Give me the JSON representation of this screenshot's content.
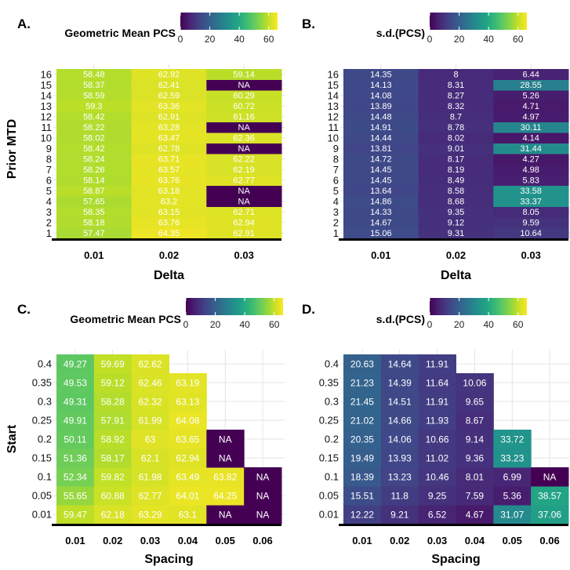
{
  "chart_data": [
    {
      "type": "heatmap",
      "panel": "A.",
      "title": "Geometric Mean PCS",
      "xlabel": "Delta",
      "ylabel": "Prior MTD",
      "x": [
        "0.01",
        "0.02",
        "0.03"
      ],
      "y": [
        "1",
        "2",
        "3",
        "4",
        "5",
        "6",
        "7",
        "8",
        "9",
        "10",
        "11",
        "12",
        "13",
        "14",
        "15",
        "16"
      ],
      "values": [
        [
          "57.47",
          "64.35",
          "62.91"
        ],
        [
          "58.18",
          "63.76",
          "62.94"
        ],
        [
          "58.35",
          "63.15",
          "62.71"
        ],
        [
          "57.65",
          "63.2",
          "NA"
        ],
        [
          "58.87",
          "63.18",
          "NA"
        ],
        [
          "58.14",
          "63.76",
          "62.77"
        ],
        [
          "58.26",
          "63.57",
          "62.19"
        ],
        [
          "58.24",
          "63.71",
          "62.22"
        ],
        [
          "58.42",
          "62.78",
          "NA"
        ],
        [
          "58.02",
          "63.47",
          "62.36"
        ],
        [
          "58.22",
          "63.28",
          "NA"
        ],
        [
          "58.42",
          "62.91",
          "61.16"
        ],
        [
          "59.3",
          "63.36",
          "60.72"
        ],
        [
          "58.59",
          "62.59",
          "60.29"
        ],
        [
          "58.37",
          "62.41",
          "NA"
        ],
        [
          "58.48",
          "62.92",
          "59.14"
        ]
      ],
      "colorbar": {
        "ticks": [
          "0",
          "20",
          "40",
          "60"
        ],
        "range": [
          0,
          66
        ]
      }
    },
    {
      "type": "heatmap",
      "panel": "B.",
      "title": "s.d.(PCS)",
      "xlabel": "Delta",
      "ylabel": "",
      "x": [
        "0.01",
        "0.02",
        "0.03"
      ],
      "y": [
        "1",
        "2",
        "3",
        "4",
        "5",
        "6",
        "7",
        "8",
        "9",
        "10",
        "11",
        "12",
        "13",
        "14",
        "15",
        "16"
      ],
      "values": [
        [
          "15.06",
          "9.31",
          "10.64"
        ],
        [
          "14.67",
          "9.12",
          "9.59"
        ],
        [
          "14.33",
          "9.35",
          "8.05"
        ],
        [
          "14.86",
          "8.68",
          "33.37"
        ],
        [
          "13.64",
          "8.58",
          "33.58"
        ],
        [
          "14.45",
          "8.49",
          "5.83"
        ],
        [
          "14.45",
          "8.19",
          "4.98"
        ],
        [
          "14.72",
          "8.17",
          "4.27"
        ],
        [
          "13.81",
          "9.01",
          "31.44"
        ],
        [
          "14.44",
          "8.02",
          "4.14"
        ],
        [
          "14.91",
          "8.78",
          "30.11"
        ],
        [
          "14.48",
          "8.7",
          "4.97"
        ],
        [
          "13.89",
          "8.32",
          "4.71"
        ],
        [
          "14.08",
          "8.27",
          "5.26"
        ],
        [
          "14.13",
          "8.31",
          "28.55"
        ],
        [
          "14.35",
          "8",
          "6.44"
        ]
      ],
      "colorbar": {
        "ticks": [
          "0",
          "20",
          "40",
          "60"
        ],
        "range": [
          0,
          66
        ]
      }
    },
    {
      "type": "heatmap",
      "panel": "C.",
      "title": "Geometric Mean PCS",
      "xlabel": "Spacing",
      "ylabel": "Start",
      "x": [
        "0.01",
        "0.02",
        "0.03",
        "0.04",
        "0.05",
        "0.06"
      ],
      "y": [
        "0.01",
        "0.05",
        "0.1",
        "0.15",
        "0.2",
        "0.25",
        "0.3",
        "0.35",
        "0.4"
      ],
      "values": [
        [
          "59.47",
          "62.18",
          "63.29",
          "63.1",
          "NA",
          "NA"
        ],
        [
          "55.65",
          "60.88",
          "62.77",
          "64.01",
          "64.25",
          "NA"
        ],
        [
          "52.34",
          "59.82",
          "61.98",
          "63.49",
          "63.82",
          "NA"
        ],
        [
          "51.36",
          "58.17",
          "62.1",
          "62.94",
          "NA",
          ""
        ],
        [
          "50.11",
          "58.92",
          "63",
          "63.65",
          "NA",
          ""
        ],
        [
          "49.91",
          "57.91",
          "61.99",
          "64.08",
          "",
          ""
        ],
        [
          "49.31",
          "58.28",
          "62.32",
          "63.13",
          "",
          ""
        ],
        [
          "49.53",
          "59.12",
          "62.46",
          "63.19",
          "",
          ""
        ],
        [
          "49.27",
          "59.69",
          "62.62",
          "",
          "",
          ""
        ]
      ],
      "colorbar": {
        "ticks": [
          "0",
          "20",
          "40",
          "60"
        ],
        "range": [
          0,
          66
        ]
      }
    },
    {
      "type": "heatmap",
      "panel": "D.",
      "title": "s.d.(PCS)",
      "xlabel": "Spacing",
      "ylabel": "",
      "x": [
        "0.01",
        "0.02",
        "0.03",
        "0.04",
        "0.05",
        "0.06"
      ],
      "y": [
        "0.01",
        "0.05",
        "0.1",
        "0.15",
        "0.2",
        "0.25",
        "0.3",
        "0.35",
        "0.4"
      ],
      "values": [
        [
          "12.22",
          "9.21",
          "6.52",
          "4.67",
          "31.07",
          "37.06"
        ],
        [
          "15.51",
          "11.8",
          "9.25",
          "7.59",
          "5.36",
          "38.57"
        ],
        [
          "18.39",
          "13.23",
          "10.46",
          "8.01",
          "6.99",
          "NA"
        ],
        [
          "19.49",
          "13.93",
          "11.02",
          "9.36",
          "33.23",
          ""
        ],
        [
          "20.35",
          "14.06",
          "10.66",
          "9.14",
          "33.72",
          ""
        ],
        [
          "21.02",
          "14.66",
          "11.93",
          "8.67",
          "",
          ""
        ],
        [
          "21.45",
          "14.51",
          "11.91",
          "9.65",
          "",
          ""
        ],
        [
          "21.23",
          "14.39",
          "11.64",
          "10.06",
          "",
          ""
        ],
        [
          "20.63",
          "14.64",
          "11.91",
          "",
          "",
          ""
        ]
      ],
      "colorbar": {
        "ticks": [
          "0",
          "20",
          "40",
          "60"
        ],
        "range": [
          0,
          66
        ]
      }
    }
  ]
}
